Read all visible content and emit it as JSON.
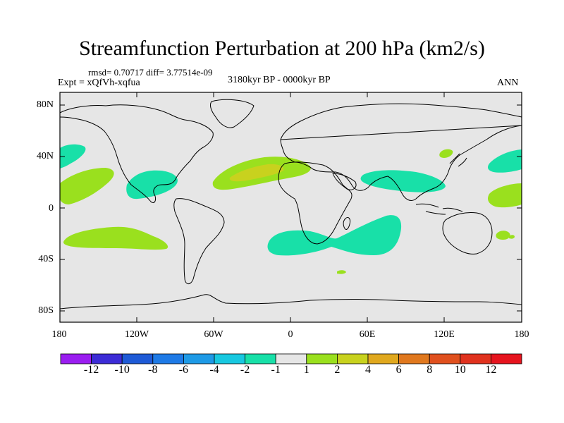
{
  "title": "Streamfunction Perturbation at 200 hPa (km2/s)",
  "stats": "rmsd= 0.70717  diff= 3.77514e-09",
  "experiment": "Expt = xQfVh-xqfua",
  "period": "3180kyr BP - 0000kyr BP",
  "season": "ANN",
  "lat_ticks": [
    "80N",
    "40N",
    "0",
    "40S",
    "80S"
  ],
  "lon_ticks": [
    "180",
    "120W",
    "60W",
    "0",
    "60E",
    "120E",
    "180"
  ],
  "colorbar": {
    "labels": [
      "-12",
      "-10",
      "-8",
      "-6",
      "-4",
      "-2",
      "-1",
      "1",
      "2",
      "4",
      "6",
      "8",
      "10",
      "12"
    ],
    "colors": [
      "#9a1df0",
      "#3c2cd6",
      "#1e5ad6",
      "#1e7ae6",
      "#1e9ae6",
      "#18c8e0",
      "#18e0a8",
      "#e6e6e6",
      "#9ae01e",
      "#c8d21e",
      "#e0a81e",
      "#e0781e",
      "#e0501e",
      "#e0321e",
      "#e6141e"
    ]
  },
  "colors": {
    "background": "#e6e6e6",
    "neg_light": "#18e0a8",
    "pos_light": "#9ae01e",
    "pos_mid": "#c8d21e"
  }
}
